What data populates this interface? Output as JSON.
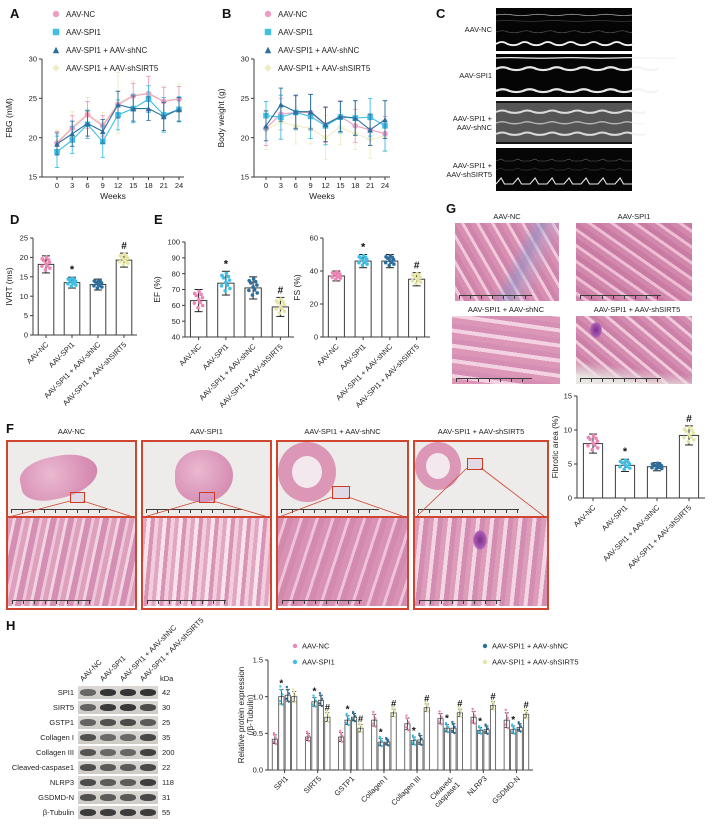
{
  "groups": [
    "AAV-NC",
    "AAV-SPI1",
    "AAV-SPI1 + AAV-shNC",
    "AAV-SPI1 + AAV-shSIRT5"
  ],
  "colors": {
    "group1": "#ef9cc1",
    "group2": "#3fbfe4",
    "group3": "#2d6f9c",
    "group4": "#ededc6",
    "group1_dot": "#ee85b5",
    "group4_dot": "#e6e6a4",
    "axis": "#3b3b3b",
    "frame_red": "#cf4630"
  },
  "panels": {
    "A": {
      "label": "A"
    },
    "B": {
      "label": "B"
    },
    "C": {
      "label": "C",
      "rows": [
        "AAV-NC",
        "AAV-SPI1",
        "AAV-SPI1 +\nAAV-shNC",
        "AAV-SPI1 +\nAAV-shSIRT5"
      ]
    },
    "D": {
      "label": "D"
    },
    "E": {
      "label": "E"
    },
    "F": {
      "label": "F",
      "columns": [
        "AAV-NC",
        "AAV-SPI1",
        "AAV-SPI1 + AAV-shNC",
        "AAV-SPI1 + AAV-shSIRT5"
      ]
    },
    "G": {
      "label": "G",
      "images": [
        "AAV-NC",
        "AAV-SPI1",
        "AAV-SPI1 + AAV-shNC",
        "AAV-SPI1 + AAV-shSIRT5"
      ]
    },
    "H": {
      "label": "H",
      "blot": {
        "kda_header": "kDa",
        "lanes": [
          "AAV-NC",
          "AAV-SPI1",
          "AAV-SPI1 + AAV-shNC",
          "AAV-SPI1 + AAV-shSIRT5"
        ],
        "rows": [
          {
            "protein": "SPI1",
            "kda": "42"
          },
          {
            "protein": "SIRT5",
            "kda": "30"
          },
          {
            "protein": "GSTP1",
            "kda": "25"
          },
          {
            "protein": "Collagen I",
            "kda": "35"
          },
          {
            "protein": "Collagen III",
            "kda": "200"
          },
          {
            "protein": "Cleaved-caspase1",
            "kda": "22"
          },
          {
            "protein": "NLRP3",
            "kda": "118"
          },
          {
            "protein": "GSDMD-N",
            "kda": "31"
          },
          {
            "protein": "β-Tubulin",
            "kda": "55"
          }
        ]
      }
    }
  },
  "chart_data": [
    {
      "id": "fbg",
      "type": "line",
      "xlabel": "Weeks",
      "ylabel": "FBG (mM)",
      "x": [
        0,
        3,
        6,
        9,
        12,
        15,
        18,
        21,
        24
      ],
      "ylim": [
        15,
        30
      ],
      "yticks": [
        15,
        20,
        25,
        30
      ],
      "legend_position": "top-left",
      "series": [
        {
          "name": "AAV-NC",
          "marker": "circle",
          "color": "#ef9cc1",
          "values": [
            19.3,
            21.2,
            22.9,
            21.5,
            24.2,
            25.3,
            25.6,
            24.6,
            24.9
          ],
          "errors": [
            1.5,
            1.6,
            1.7,
            1.3,
            1.7,
            1.6,
            2.2,
            1.8,
            1.6
          ]
        },
        {
          "name": "AAV-SPI1",
          "marker": "square",
          "color": "#3fbfe4",
          "values": [
            18.2,
            19.7,
            21.7,
            19.5,
            22.9,
            23.7,
            24.9,
            22.9,
            23.6
          ],
          "errors": [
            2.0,
            1.7,
            1.8,
            2.0,
            1.9,
            1.8,
            1.7,
            2.2,
            1.6
          ]
        },
        {
          "name": "AAV-SPI1 + AAV-shNC",
          "marker": "triangle",
          "color": "#2d6f9c",
          "values": [
            19.2,
            20.5,
            21.8,
            20.8,
            24.2,
            23.7,
            23.7,
            22.7,
            23.6
          ],
          "errors": [
            1.4,
            1.6,
            1.6,
            1.5,
            1.7,
            1.6,
            1.5,
            1.8,
            1.5
          ]
        },
        {
          "name": "AAV-SPI1 + AAV-shSIRT5",
          "marker": "diamond",
          "color": "#ededc6",
          "values": [
            19.4,
            21.4,
            23.1,
            21.7,
            24.4,
            25.4,
            25.7,
            24.7,
            25.0
          ],
          "errors": [
            1.6,
            1.9,
            2.0,
            1.5,
            3.9,
            1.8,
            2.1,
            1.9,
            1.8
          ]
        }
      ]
    },
    {
      "id": "bodyweight",
      "type": "line",
      "xlabel": "Weeks",
      "ylabel": "Body weight (g)",
      "x": [
        0,
        3,
        6,
        9,
        12,
        15,
        18,
        21,
        24
      ],
      "ylim": [
        15,
        30
      ],
      "yticks": [
        15,
        20,
        25,
        30
      ],
      "legend_position": "top-left",
      "series": [
        {
          "name": "AAV-NC",
          "marker": "circle",
          "color": "#ef9cc1",
          "values": [
            21.2,
            23.0,
            23.2,
            23.2,
            21.6,
            22.7,
            21.5,
            21.0,
            20.5
          ],
          "errors": [
            2.2,
            2.0,
            2.1,
            2.3,
            2.2,
            2.0,
            2.1,
            2.0,
            2.2
          ]
        },
        {
          "name": "AAV-SPI1",
          "marker": "square",
          "color": "#3fbfe4",
          "values": [
            22.8,
            22.6,
            23.2,
            22.7,
            21.5,
            22.6,
            22.5,
            22.6,
            21.5
          ],
          "errors": [
            1.8,
            2.8,
            2.2,
            2.8,
            2.4,
            2.0,
            2.2,
            2.4,
            3.2
          ]
        },
        {
          "name": "AAV-SPI1 + AAV-shNC",
          "marker": "triangle",
          "color": "#2d6f9c",
          "values": [
            21.5,
            24.2,
            23.3,
            23.3,
            21.7,
            22.7,
            22.5,
            21.0,
            22.3
          ],
          "errors": [
            1.9,
            2.1,
            2.1,
            2.2,
            2.2,
            1.9,
            2.2,
            2.0,
            2.4
          ]
        },
        {
          "name": "AAV-SPI1 + AAV-shSIRT5",
          "marker": "diamond",
          "color": "#ededc6",
          "values": [
            21.0,
            22.0,
            21.5,
            21.2,
            20.0,
            21.3,
            20.5,
            19.8,
            20.2
          ],
          "errors": [
            2.5,
            2.2,
            2.3,
            2.0,
            2.8,
            2.2,
            2.0,
            2.4,
            2.0
          ]
        }
      ]
    },
    {
      "id": "ivrt",
      "type": "bar",
      "ylabel": "IVRT (ms)",
      "categories": [
        "AAV-NC",
        "AAV-SPI1",
        "AAV-SPI1 + AAV-shNC",
        "AAV-SPI1 + AAV-shSIRT5"
      ],
      "values": [
        18.2,
        13.5,
        13.0,
        19.3
      ],
      "errors": [
        2.2,
        1.4,
        1.4,
        1.8
      ],
      "annotations": [
        "",
        "*",
        "",
        "#"
      ],
      "ylim": [
        0,
        25
      ],
      "yticks": [
        0,
        5,
        10,
        15,
        20,
        25
      ],
      "dot_colors": [
        "#ee85b5",
        "#3fbfe4",
        "#2d6f9c",
        "#e6e6a4"
      ]
    },
    {
      "id": "ef",
      "type": "bar",
      "ylabel": "EF (%)",
      "categories": [
        "AAV-NC",
        "AAV-SPI1",
        "AAV-SPI1 + AAV-shNC",
        "AAV-SPI1 + AAV-shSIRT5"
      ],
      "values": [
        63,
        74,
        71,
        59
      ],
      "errors": [
        7,
        7.5,
        7,
        6
      ],
      "annotations": [
        "",
        "*",
        "",
        "#"
      ],
      "ylim": [
        40,
        100
      ],
      "yticks": [
        40,
        50,
        60,
        70,
        80,
        90,
        100
      ],
      "dot_colors": [
        "#ee85b5",
        "#3fbfe4",
        "#2d6f9c",
        "#e6e6a4"
      ]
    },
    {
      "id": "fs",
      "type": "bar",
      "ylabel": "FS (%)",
      "categories": [
        "AAV-NC",
        "AAV-SPI1",
        "AAV-SPI1 + AAV-shNC",
        "AAV-SPI1 + AAV-shSIRT5"
      ],
      "values": [
        37,
        46,
        46,
        35
      ],
      "errors": [
        3,
        4,
        4,
        4
      ],
      "annotations": [
        "",
        "*",
        "",
        "#"
      ],
      "ylim": [
        0,
        60
      ],
      "yticks": [
        0,
        20,
        40,
        60
      ],
      "dot_colors": [
        "#ee85b5",
        "#3fbfe4",
        "#2d6f9c",
        "#e6e6a4"
      ]
    },
    {
      "id": "fibrotic",
      "type": "bar",
      "ylabel": "Fibrotic area (%)",
      "categories": [
        "AAV-NC",
        "AAV-SPI1",
        "AAV-SPI1 + AAV-shNC",
        "AAV-SPI1 + AAV-shSIRT5"
      ],
      "values": [
        8.0,
        4.8,
        4.6,
        9.2
      ],
      "errors": [
        1.4,
        0.9,
        0.6,
        1.4
      ],
      "annotations": [
        "",
        "*",
        "",
        "#"
      ],
      "ylim": [
        0,
        15
      ],
      "yticks": [
        0,
        5,
        10,
        15
      ],
      "dot_colors": [
        "#ee85b5",
        "#3fbfe4",
        "#2d6f9c",
        "#e6e6a4"
      ]
    },
    {
      "id": "protein",
      "type": "groupedbar",
      "ylabel_lines": [
        "Relative protein expression",
        "(/β-Tubulin)"
      ],
      "categories": [
        "SPI1",
        "SIRT5",
        "GSTP1",
        "Collagen I",
        "Collagen III",
        "Cleaved-\ncaspase1",
        "NLRP3",
        "GSDMD-N"
      ],
      "ylim": [
        0,
        1.5
      ],
      "yticks": [
        0.0,
        0.5,
        1.0,
        1.5
      ],
      "ydecimals": 1,
      "series": [
        {
          "name": "AAV-NC",
          "color": "#ee85b5",
          "values": [
            0.42,
            0.45,
            0.45,
            0.68,
            0.63,
            0.7,
            0.72,
            0.68
          ],
          "errors": [
            0.06,
            0.05,
            0.06,
            0.08,
            0.08,
            0.07,
            0.08,
            0.1
          ]
        },
        {
          "name": "AAV-SPI1",
          "color": "#3fbfe4",
          "values": [
            1.0,
            0.93,
            0.68,
            0.38,
            0.4,
            0.57,
            0.54,
            0.55
          ],
          "errors": [
            0.1,
            0.06,
            0.06,
            0.05,
            0.05,
            0.05,
            0.04,
            0.05
          ]
        },
        {
          "name": "AAV-SPI1 + AAV-shNC",
          "color": "#2d6f9c",
          "values": [
            1.02,
            0.95,
            0.72,
            0.38,
            0.41,
            0.57,
            0.55,
            0.58
          ],
          "errors": [
            0.08,
            0.07,
            0.05,
            0.04,
            0.06,
            0.06,
            0.05,
            0.05
          ]
        },
        {
          "name": "AAV-SPI1 + AAV-shSIRT5",
          "color": "#e6e6a4",
          "values": [
            1.0,
            0.72,
            0.57,
            0.78,
            0.85,
            0.78,
            0.88,
            0.76
          ],
          "errors": [
            0.07,
            0.06,
            0.05,
            0.05,
            0.05,
            0.05,
            0.05,
            0.05
          ]
        }
      ],
      "star_on_series2": [
        1,
        1,
        1,
        1,
        1,
        1,
        1,
        1
      ],
      "hash_on_series4": [
        0,
        1,
        1,
        1,
        1,
        1,
        1,
        1
      ],
      "legend_position": "top"
    }
  ]
}
